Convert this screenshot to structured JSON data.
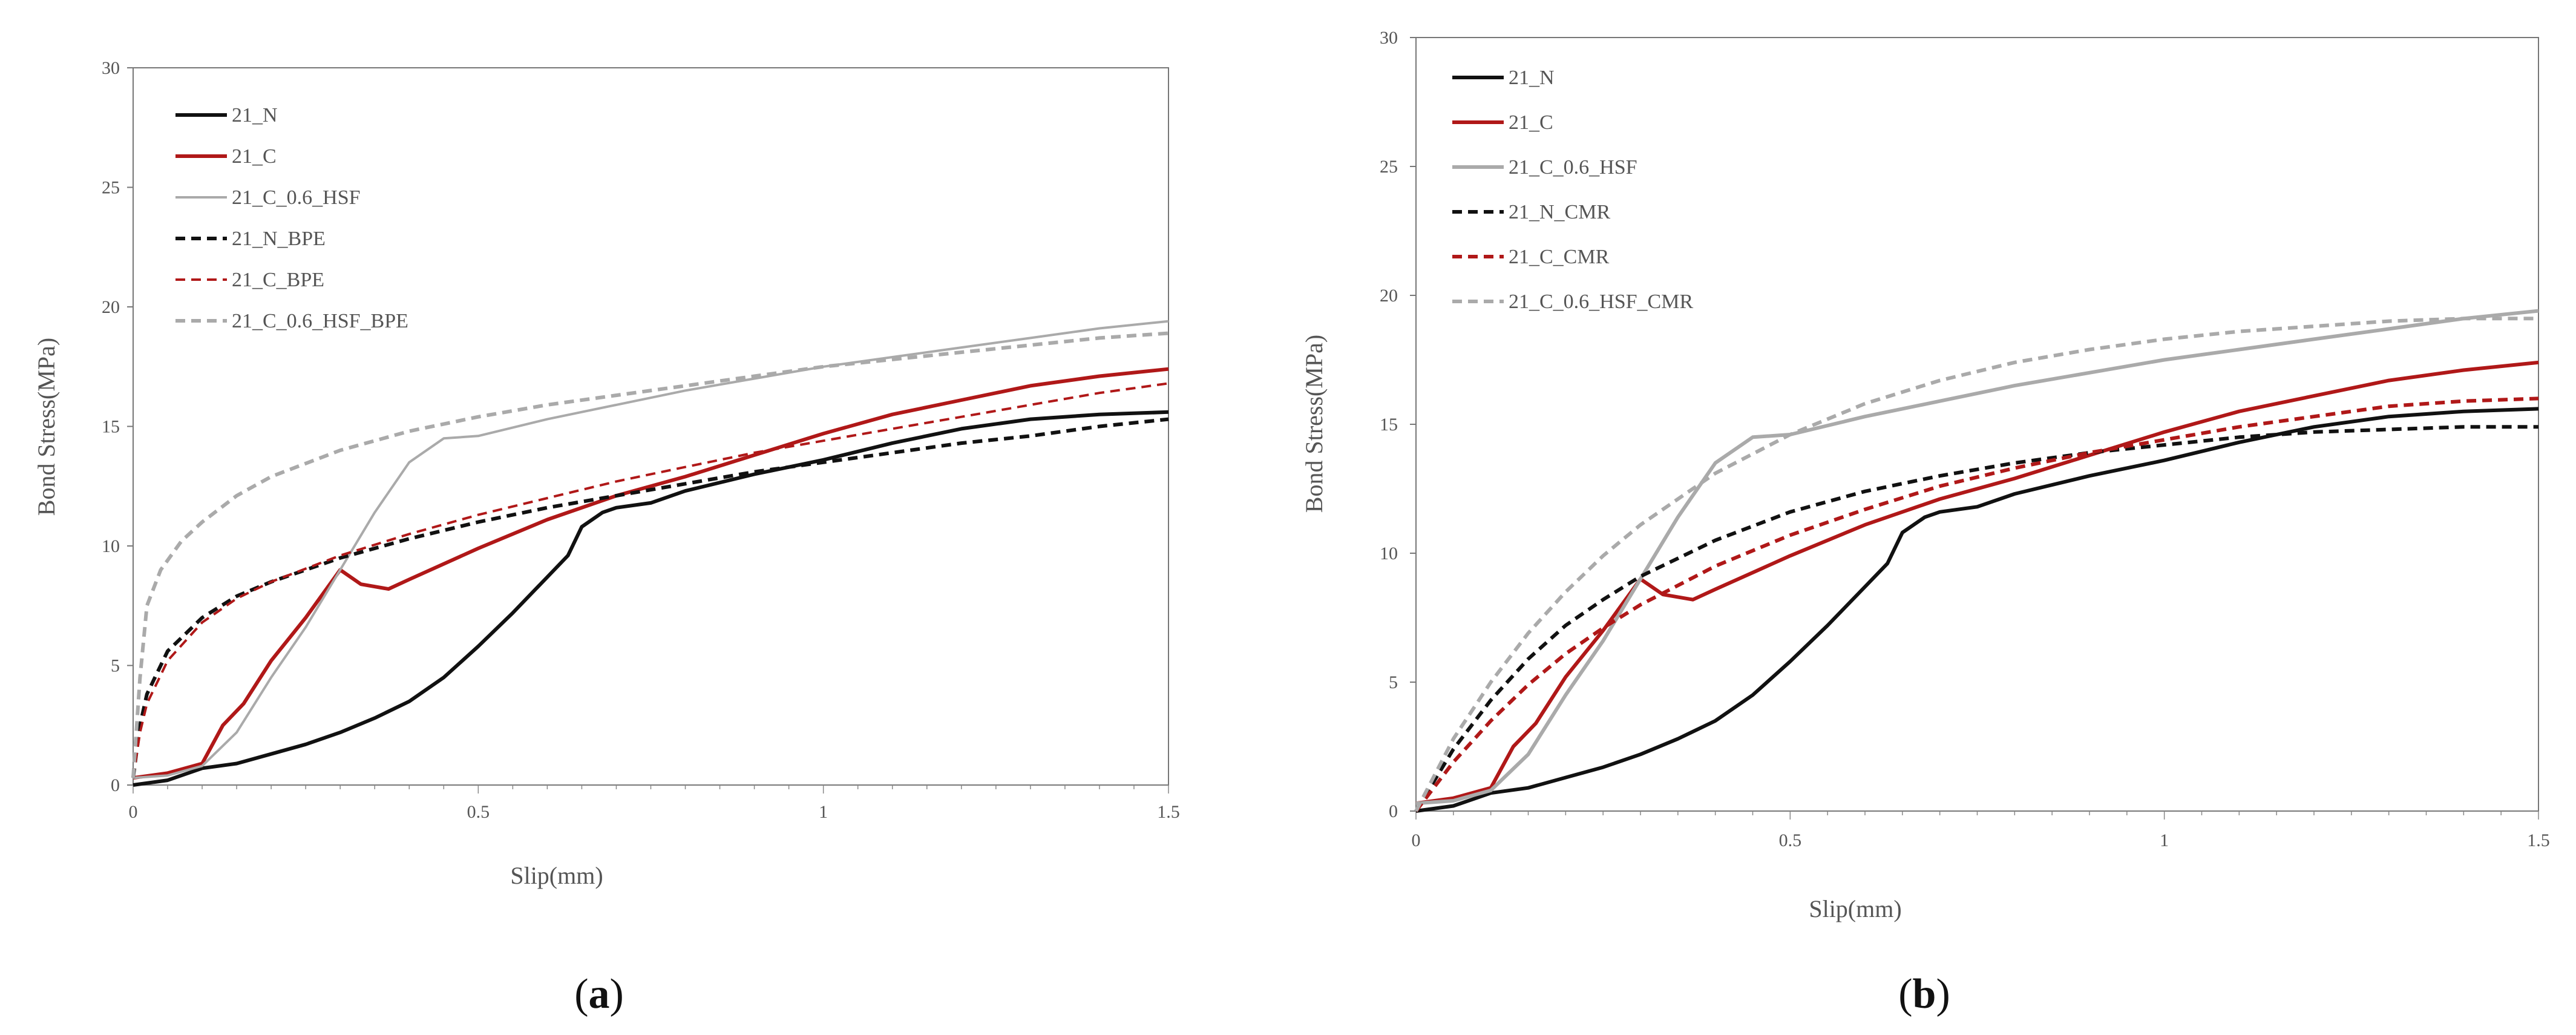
{
  "chart_data": [
    {
      "type": "line",
      "panel_label": "a",
      "caption": "(a)",
      "xlabel": "Slip(mm)",
      "ylabel": "Bond Stress(MPa)",
      "xlim": [
        0,
        1.5
      ],
      "ylim": [
        0,
        30
      ],
      "xticks": [
        0,
        0.5,
        1,
        1.5
      ],
      "xtick_labels": [
        "0",
        "0.5",
        "1",
        "1.5"
      ],
      "yticks": [
        0,
        5,
        10,
        15,
        20,
        25,
        30
      ],
      "ytick_labels": [
        "0",
        "5",
        "10",
        "15",
        "20",
        "25",
        "30"
      ],
      "legend_position": "top-left",
      "series": [
        {
          "name": "21_N",
          "color": "#111111",
          "dash": "solid",
          "weight": "bold",
          "x": [
            0,
            0.05,
            0.1,
            0.15,
            0.2,
            0.25,
            0.3,
            0.35,
            0.4,
            0.45,
            0.5,
            0.55,
            0.6,
            0.63,
            0.65,
            0.68,
            0.7,
            0.75,
            0.8,
            0.9,
            1.0,
            1.1,
            1.2,
            1.3,
            1.4,
            1.5
          ],
          "y": [
            0,
            0.2,
            0.7,
            0.9,
            1.3,
            1.7,
            2.2,
            2.8,
            3.5,
            4.5,
            5.8,
            7.2,
            8.7,
            9.6,
            10.8,
            11.4,
            11.6,
            11.8,
            12.3,
            13.0,
            13.6,
            14.3,
            14.9,
            15.3,
            15.5,
            15.6
          ]
        },
        {
          "name": "21_C",
          "color": "#b01818",
          "dash": "solid",
          "weight": "bold",
          "x": [
            0,
            0.05,
            0.1,
            0.13,
            0.16,
            0.2,
            0.25,
            0.3,
            0.33,
            0.37,
            0.4,
            0.5,
            0.6,
            0.7,
            0.8,
            0.9,
            1.0,
            1.1,
            1.2,
            1.3,
            1.4,
            1.5
          ],
          "y": [
            0.3,
            0.5,
            0.9,
            2.5,
            3.4,
            5.2,
            7.0,
            9.0,
            8.4,
            8.2,
            8.6,
            9.9,
            11.1,
            12.1,
            12.9,
            13.8,
            14.7,
            15.5,
            16.1,
            16.7,
            17.1,
            17.4
          ]
        },
        {
          "name": "21_C_0.6_HSF",
          "color": "#aaaaaa",
          "dash": "solid",
          "weight": "thin",
          "x": [
            0,
            0.05,
            0.1,
            0.15,
            0.2,
            0.25,
            0.3,
            0.35,
            0.4,
            0.45,
            0.5,
            0.6,
            0.7,
            0.8,
            0.9,
            1.0,
            1.1,
            1.2,
            1.3,
            1.4,
            1.5
          ],
          "y": [
            0.3,
            0.4,
            0.8,
            2.2,
            4.5,
            6.6,
            9.0,
            11.4,
            13.5,
            14.5,
            14.6,
            15.3,
            15.9,
            16.5,
            17.0,
            17.5,
            17.9,
            18.3,
            18.7,
            19.1,
            19.4
          ]
        },
        {
          "name": "21_N_BPE",
          "color": "#111111",
          "dash": "dashed",
          "weight": "bold",
          "x": [
            0,
            0.01,
            0.02,
            0.05,
            0.1,
            0.15,
            0.2,
            0.3,
            0.4,
            0.5,
            0.6,
            0.7,
            0.8,
            0.9,
            1.0,
            1.1,
            1.2,
            1.3,
            1.4,
            1.5
          ],
          "y": [
            0.3,
            2.5,
            3.8,
            5.6,
            7.0,
            7.9,
            8.5,
            9.5,
            10.3,
            11.0,
            11.6,
            12.1,
            12.6,
            13.1,
            13.5,
            13.9,
            14.3,
            14.6,
            15.0,
            15.3
          ]
        },
        {
          "name": "21_C_BPE",
          "color": "#b01818",
          "dash": "dashed",
          "weight": "thin",
          "x": [
            0,
            0.01,
            0.02,
            0.05,
            0.1,
            0.15,
            0.2,
            0.3,
            0.4,
            0.5,
            0.6,
            0.7,
            0.8,
            0.9,
            1.0,
            1.1,
            1.2,
            1.3,
            1.4,
            1.5
          ],
          "y": [
            0.3,
            2.2,
            3.4,
            5.2,
            6.8,
            7.8,
            8.5,
            9.6,
            10.5,
            11.3,
            12.0,
            12.7,
            13.3,
            13.9,
            14.4,
            14.9,
            15.4,
            15.9,
            16.4,
            16.8
          ]
        },
        {
          "name": "21_C_0.6_HSF_BPE",
          "color": "#aaaaaa",
          "dash": "dashed",
          "weight": "bold",
          "x": [
            0,
            0.01,
            0.02,
            0.04,
            0.07,
            0.1,
            0.15,
            0.2,
            0.3,
            0.4,
            0.5,
            0.6,
            0.7,
            0.8,
            0.9,
            1.0,
            1.1,
            1.2,
            1.3,
            1.4,
            1.5
          ],
          "y": [
            0.3,
            4.5,
            7.5,
            9.0,
            10.2,
            11.0,
            12.1,
            12.9,
            14.0,
            14.8,
            15.4,
            15.9,
            16.3,
            16.7,
            17.1,
            17.5,
            17.8,
            18.1,
            18.4,
            18.7,
            18.9
          ]
        }
      ]
    },
    {
      "type": "line",
      "panel_label": "b",
      "caption": "(b)",
      "xlabel": "Slip(mm)",
      "ylabel": "Bond Stress(MPa)",
      "xlim": [
        0,
        1.5
      ],
      "ylim": [
        0,
        30
      ],
      "xticks": [
        0,
        0.5,
        1,
        1.5
      ],
      "xtick_labels": [
        "0",
        "0.5",
        "1",
        "1.5"
      ],
      "yticks": [
        0,
        5,
        10,
        15,
        20,
        25,
        30
      ],
      "ytick_labels": [
        "0",
        "5",
        "10",
        "15",
        "20",
        "25",
        "30"
      ],
      "legend_position": "top-left",
      "series": [
        {
          "name": "21_N",
          "color": "#111111",
          "dash": "solid",
          "weight": "bold",
          "x": [
            0,
            0.05,
            0.1,
            0.15,
            0.2,
            0.25,
            0.3,
            0.35,
            0.4,
            0.45,
            0.5,
            0.55,
            0.6,
            0.63,
            0.65,
            0.68,
            0.7,
            0.75,
            0.8,
            0.9,
            1.0,
            1.1,
            1.2,
            1.3,
            1.4,
            1.5
          ],
          "y": [
            0,
            0.2,
            0.7,
            0.9,
            1.3,
            1.7,
            2.2,
            2.8,
            3.5,
            4.5,
            5.8,
            7.2,
            8.7,
            9.6,
            10.8,
            11.4,
            11.6,
            11.8,
            12.3,
            13.0,
            13.6,
            14.3,
            14.9,
            15.3,
            15.5,
            15.6
          ]
        },
        {
          "name": "21_C",
          "color": "#b01818",
          "dash": "solid",
          "weight": "bold",
          "x": [
            0,
            0.05,
            0.1,
            0.13,
            0.16,
            0.2,
            0.25,
            0.3,
            0.33,
            0.37,
            0.4,
            0.5,
            0.6,
            0.7,
            0.8,
            0.9,
            1.0,
            1.1,
            1.2,
            1.3,
            1.4,
            1.5
          ],
          "y": [
            0.3,
            0.5,
            0.9,
            2.5,
            3.4,
            5.2,
            7.0,
            9.0,
            8.4,
            8.2,
            8.6,
            9.9,
            11.1,
            12.1,
            12.9,
            13.8,
            14.7,
            15.5,
            16.1,
            16.7,
            17.1,
            17.4
          ]
        },
        {
          "name": "21_C_0.6_HSF",
          "color": "#aaaaaa",
          "dash": "solid",
          "weight": "bold",
          "x": [
            0,
            0.05,
            0.1,
            0.15,
            0.2,
            0.25,
            0.3,
            0.35,
            0.4,
            0.45,
            0.5,
            0.6,
            0.7,
            0.8,
            0.9,
            1.0,
            1.1,
            1.2,
            1.3,
            1.4,
            1.5
          ],
          "y": [
            0.3,
            0.4,
            0.8,
            2.2,
            4.5,
            6.6,
            9.0,
            11.4,
            13.5,
            14.5,
            14.6,
            15.3,
            15.9,
            16.5,
            17.0,
            17.5,
            17.9,
            18.3,
            18.7,
            19.1,
            19.4
          ]
        },
        {
          "name": "21_N_CMR",
          "color": "#111111",
          "dash": "dashed",
          "weight": "bold",
          "x": [
            0,
            0.05,
            0.1,
            0.15,
            0.2,
            0.25,
            0.3,
            0.4,
            0.5,
            0.6,
            0.7,
            0.8,
            0.9,
            1.0,
            1.1,
            1.2,
            1.3,
            1.4,
            1.5
          ],
          "y": [
            0,
            2.4,
            4.3,
            5.9,
            7.2,
            8.2,
            9.1,
            10.5,
            11.6,
            12.4,
            13.0,
            13.5,
            13.9,
            14.2,
            14.5,
            14.7,
            14.8,
            14.9,
            14.9
          ]
        },
        {
          "name": "21_C_CMR",
          "color": "#b01818",
          "dash": "dashed",
          "weight": "bold",
          "x": [
            0,
            0.05,
            0.1,
            0.15,
            0.2,
            0.25,
            0.3,
            0.4,
            0.5,
            0.6,
            0.7,
            0.8,
            0.9,
            1.0,
            1.1,
            1.2,
            1.3,
            1.4,
            1.5
          ],
          "y": [
            0,
            1.9,
            3.5,
            4.9,
            6.1,
            7.1,
            8.0,
            9.5,
            10.7,
            11.7,
            12.6,
            13.3,
            13.9,
            14.4,
            14.9,
            15.3,
            15.7,
            15.9,
            16.0
          ]
        },
        {
          "name": "21_C_0.6_HSF_CMR",
          "color": "#aaaaaa",
          "dash": "dashed",
          "weight": "bold",
          "x": [
            0,
            0.05,
            0.1,
            0.15,
            0.2,
            0.25,
            0.3,
            0.4,
            0.5,
            0.6,
            0.7,
            0.8,
            0.9,
            1.0,
            1.1,
            1.2,
            1.3,
            1.4,
            1.5
          ],
          "y": [
            0,
            2.8,
            5.0,
            6.9,
            8.5,
            9.9,
            11.1,
            13.1,
            14.6,
            15.8,
            16.7,
            17.4,
            17.9,
            18.3,
            18.6,
            18.8,
            19.0,
            19.1,
            19.1
          ]
        }
      ]
    }
  ]
}
